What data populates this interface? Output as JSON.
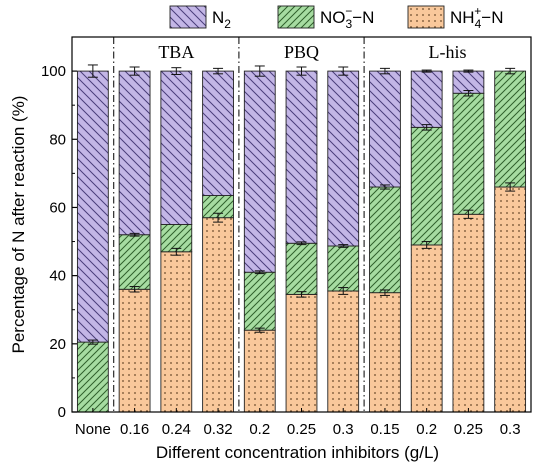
{
  "chart_data": {
    "type": "bar",
    "stacked": true,
    "xlabel": "Different  concentration inhibitors (g/L)",
    "ylabel": "Percentage of N after reaction (%)",
    "ylim": [
      0,
      110
    ],
    "yticks": [
      0,
      20,
      40,
      60,
      80,
      100
    ],
    "categories": [
      "None",
      "0.16",
      "0.24",
      "0.32",
      "0.2",
      "0.25",
      "0.3",
      "0.15",
      "0.2",
      "0.25",
      "0.3"
    ],
    "groups": [
      {
        "label": "",
        "start": 0,
        "end": 0
      },
      {
        "label": "TBA",
        "start": 1,
        "end": 3
      },
      {
        "label": "PBQ",
        "start": 4,
        "end": 6
      },
      {
        "label": "L-his",
        "start": 7,
        "end": 10
      }
    ],
    "legend_position": "top",
    "series": [
      {
        "name": "NH4+-N",
        "legend_base": "NH",
        "legend_sub": "4",
        "legend_sup": "+",
        "legend_tail": "−N",
        "color": "#f9c89b",
        "hatch": "dots",
        "values": [
          0,
          36,
          47,
          57,
          24,
          34.5,
          35.5,
          35,
          49,
          58,
          66
        ],
        "errors": [
          0,
          0.8,
          1.0,
          1.3,
          0.6,
          0.8,
          1.0,
          0.8,
          1.0,
          1.2,
          1.2
        ]
      },
      {
        "name": "NO3--N",
        "legend_base": "NO",
        "legend_sub": "3",
        "legend_sup": "−",
        "legend_tail": "−N",
        "color": "#a6dca1",
        "hatch": "diag-right",
        "values": [
          20.5,
          16,
          8,
          6.5,
          17,
          15,
          13.2,
          31,
          34.5,
          35.5,
          34
        ],
        "errors": [
          0.6,
          0.4,
          0,
          0,
          0.4,
          0.4,
          0.4,
          0.6,
          0.8,
          0.8,
          0
        ]
      },
      {
        "name": "N2",
        "legend_base": "N",
        "legend_sub": "2",
        "legend_sup": "",
        "legend_tail": "",
        "color": "#c3b6e6",
        "hatch": "diag-left",
        "values": [
          79.5,
          48,
          45,
          36.5,
          59,
          50.5,
          51.3,
          34,
          16.5,
          6.5,
          0
        ],
        "errors": [
          1.8,
          1.2,
          1.0,
          0.8,
          1.5,
          1.2,
          1.2,
          0.8,
          0.3,
          0.3,
          0.8
        ]
      }
    ]
  }
}
